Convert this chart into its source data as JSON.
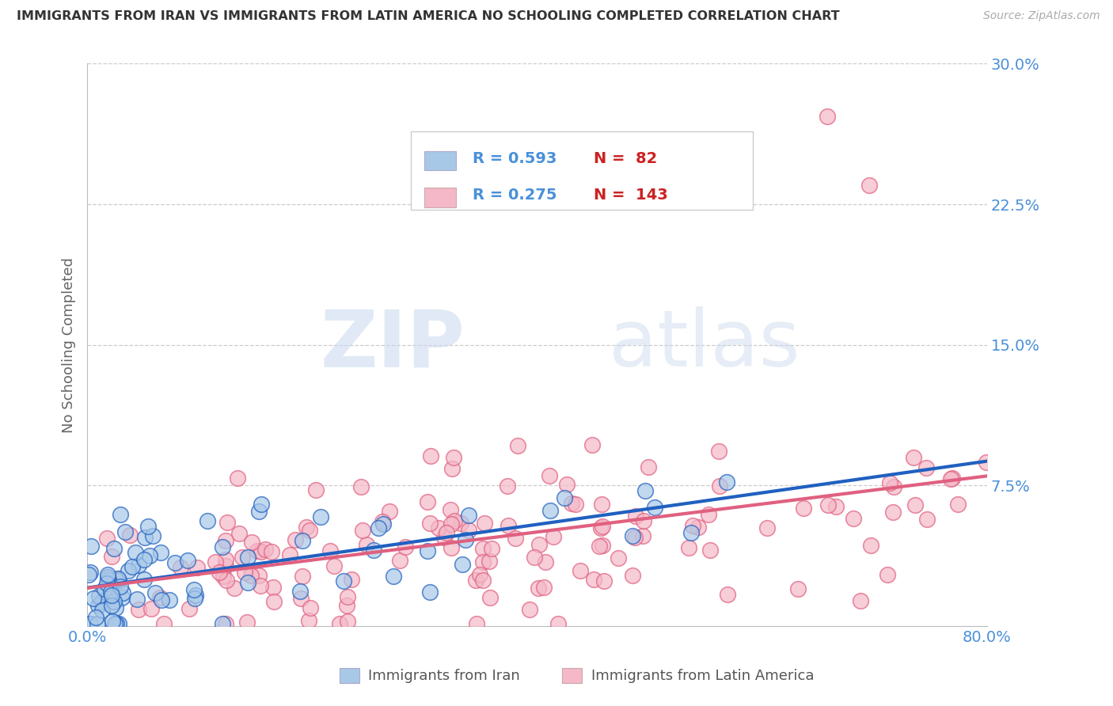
{
  "title": "IMMIGRANTS FROM IRAN VS IMMIGRANTS FROM LATIN AMERICA NO SCHOOLING COMPLETED CORRELATION CHART",
  "source": "Source: ZipAtlas.com",
  "xlabel_iran": "Immigrants from Iran",
  "xlabel_latam": "Immigrants from Latin America",
  "ylabel": "No Schooling Completed",
  "watermark_zip": "ZIP",
  "watermark_atlas": "atlas",
  "xlim": [
    0.0,
    0.8
  ],
  "ylim": [
    0.0,
    0.3
  ],
  "iran_R": 0.593,
  "iran_N": 82,
  "latam_R": 0.275,
  "latam_N": 143,
  "iran_color": "#a8c8e8",
  "latam_color": "#f4b8c8",
  "iran_line_color": "#2060c0",
  "latam_line_color": "#e06080",
  "background_color": "#ffffff",
  "grid_color": "#cccccc",
  "title_color": "#333333",
  "axis_label_color": "#666666",
  "tick_label_color": "#4a90d9",
  "legend_text_color": "#4a90d9",
  "legend_N_color": "#cc2222",
  "source_color": "#aaaaaa"
}
